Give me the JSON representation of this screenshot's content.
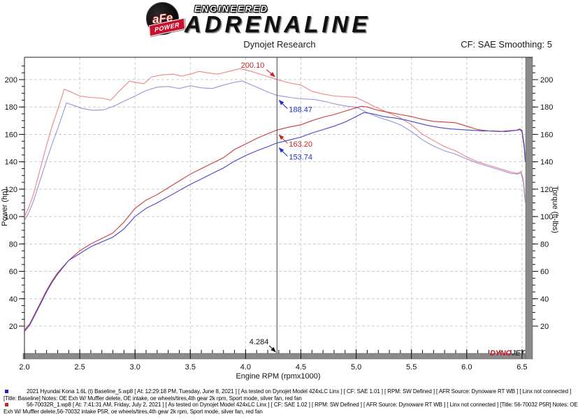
{
  "header": {
    "brand": {
      "circle_text": "aFe",
      "banner_text": "POWER",
      "line1": "ENGINEERED",
      "line2": "ADRENALINE"
    },
    "title": "Dynojet Research",
    "correction": "CF: SAE Smoothing: 5"
  },
  "chart_data": {
    "type": "line",
    "title": "Dynojet Research",
    "xlabel": "Engine RPM (rpmx1000)",
    "ylabel_left": "Power (hp)",
    "ylabel_right": "Torque (ft-lbs)",
    "xlim": [
      2.0,
      6.6
    ],
    "ylim": [
      0,
      213
    ],
    "x_major_ticks": [
      2.0,
      2.5,
      3.0,
      3.5,
      4.0,
      4.5,
      5.0,
      5.5,
      6.0,
      6.5
    ],
    "x_minor_step": 0.1,
    "y_major_ticks": [
      20,
      40,
      60,
      80,
      100,
      120,
      140,
      160,
      180,
      200
    ],
    "y_minor_step": 5,
    "grid": "dashed",
    "cursor": {
      "rpm": 4.284,
      "label": "4.284",
      "readouts": [
        {
          "text": "200.10",
          "color": "#cc2222",
          "placement": "above-left"
        },
        {
          "text": "188.47",
          "color": "#2233cc",
          "placement": "below-right"
        },
        {
          "text": "163.20",
          "color": "#cc2222",
          "placement": "below-right"
        },
        {
          "text": "153.74",
          "color": "#2233cc",
          "placement": "below-right"
        }
      ]
    },
    "series": [
      {
        "name": "Torque - 56-70032 P5R",
        "axis": "right",
        "color": "#ec8585",
        "points": [
          [
            2.0,
            100
          ],
          [
            2.04,
            107
          ],
          [
            2.08,
            116
          ],
          [
            2.12,
            128
          ],
          [
            2.16,
            140
          ],
          [
            2.2,
            152
          ],
          [
            2.25,
            166
          ],
          [
            2.3,
            178
          ],
          [
            2.36,
            193
          ],
          [
            2.42,
            191
          ],
          [
            2.5,
            188
          ],
          [
            2.6,
            187
          ],
          [
            2.7,
            186.5
          ],
          [
            2.78,
            185
          ],
          [
            2.85,
            191
          ],
          [
            2.95,
            199
          ],
          [
            3.0,
            198
          ],
          [
            3.08,
            197
          ],
          [
            3.15,
            202
          ],
          [
            3.25,
            203.5
          ],
          [
            3.35,
            204
          ],
          [
            3.42,
            202.5
          ],
          [
            3.5,
            204
          ],
          [
            3.58,
            206
          ],
          [
            3.65,
            205
          ],
          [
            3.75,
            204
          ],
          [
            3.85,
            206
          ],
          [
            3.95,
            208
          ],
          [
            4.05,
            206
          ],
          [
            4.15,
            203.5
          ],
          [
            4.284,
            200.1
          ],
          [
            4.4,
            197.5
          ],
          [
            4.5,
            196
          ],
          [
            4.6,
            191.5
          ],
          [
            4.7,
            189.5
          ],
          [
            4.8,
            188
          ],
          [
            4.9,
            187.5
          ],
          [
            5.0,
            187
          ],
          [
            5.1,
            183
          ],
          [
            5.2,
            179
          ],
          [
            5.3,
            175.5
          ],
          [
            5.4,
            172
          ],
          [
            5.5,
            167
          ],
          [
            5.6,
            160
          ],
          [
            5.7,
            155.5
          ],
          [
            5.8,
            151
          ],
          [
            5.9,
            148
          ],
          [
            6.0,
            143.5
          ],
          [
            6.1,
            140
          ],
          [
            6.2,
            137.5
          ],
          [
            6.3,
            135
          ],
          [
            6.4,
            132.5
          ],
          [
            6.46,
            131.5
          ],
          [
            6.49,
            133
          ],
          [
            6.51,
            128
          ],
          [
            6.53,
            112
          ]
        ]
      },
      {
        "name": "Torque - Baseline",
        "axis": "right",
        "color": "#9595dd",
        "points": [
          [
            2.0,
            97
          ],
          [
            2.04,
            103
          ],
          [
            2.08,
            111
          ],
          [
            2.12,
            121
          ],
          [
            2.16,
            131
          ],
          [
            2.2,
            141
          ],
          [
            2.25,
            153
          ],
          [
            2.3,
            164
          ],
          [
            2.38,
            183
          ],
          [
            2.45,
            181
          ],
          [
            2.52,
            179
          ],
          [
            2.62,
            177.5
          ],
          [
            2.72,
            178
          ],
          [
            2.82,
            181
          ],
          [
            2.92,
            185
          ],
          [
            3.0,
            188
          ],
          [
            3.1,
            192
          ],
          [
            3.2,
            194.5
          ],
          [
            3.3,
            195
          ],
          [
            3.4,
            193.5
          ],
          [
            3.5,
            195.5
          ],
          [
            3.6,
            194
          ],
          [
            3.7,
            193.5
          ],
          [
            3.8,
            196
          ],
          [
            3.9,
            198
          ],
          [
            3.97,
            199
          ],
          [
            4.1,
            194.5
          ],
          [
            4.2,
            191
          ],
          [
            4.284,
            188.5
          ],
          [
            4.4,
            187
          ],
          [
            4.5,
            186
          ],
          [
            4.62,
            185.5
          ],
          [
            4.72,
            184
          ],
          [
            4.82,
            182
          ],
          [
            4.92,
            180.5
          ],
          [
            5.0,
            180
          ],
          [
            5.1,
            176
          ],
          [
            5.2,
            172.5
          ],
          [
            5.3,
            170
          ],
          [
            5.4,
            167
          ],
          [
            5.5,
            162
          ],
          [
            5.6,
            156
          ],
          [
            5.7,
            151.5
          ],
          [
            5.8,
            148
          ],
          [
            5.9,
            145.5
          ],
          [
            6.0,
            142
          ],
          [
            6.1,
            139
          ],
          [
            6.2,
            136.5
          ],
          [
            6.3,
            134
          ],
          [
            6.4,
            131.5
          ],
          [
            6.46,
            131
          ],
          [
            6.49,
            132
          ],
          [
            6.51,
            126
          ],
          [
            6.53,
            110
          ]
        ]
      },
      {
        "name": "Power - 56-70032 P5R",
        "axis": "left",
        "color": "#cf3a3a",
        "points": [
          [
            2.0,
            17
          ],
          [
            2.05,
            22
          ],
          [
            2.1,
            30
          ],
          [
            2.15,
            38
          ],
          [
            2.2,
            46
          ],
          [
            2.25,
            53
          ],
          [
            2.3,
            59
          ],
          [
            2.4,
            68
          ],
          [
            2.5,
            75
          ],
          [
            2.6,
            80
          ],
          [
            2.7,
            84
          ],
          [
            2.8,
            88
          ],
          [
            2.9,
            96
          ],
          [
            3.0,
            106
          ],
          [
            3.1,
            112
          ],
          [
            3.2,
            116
          ],
          [
            3.3,
            121
          ],
          [
            3.4,
            126
          ],
          [
            3.5,
            131
          ],
          [
            3.6,
            135
          ],
          [
            3.7,
            139
          ],
          [
            3.8,
            143
          ],
          [
            3.9,
            149
          ],
          [
            4.0,
            153
          ],
          [
            4.1,
            157
          ],
          [
            4.2,
            160.5
          ],
          [
            4.284,
            163.2
          ],
          [
            4.4,
            165.5
          ],
          [
            4.5,
            167
          ],
          [
            4.6,
            170
          ],
          [
            4.7,
            172.5
          ],
          [
            4.8,
            174.5
          ],
          [
            4.9,
            177
          ],
          [
            5.0,
            179.5
          ],
          [
            5.05,
            180.5
          ],
          [
            5.1,
            180
          ],
          [
            5.2,
            177.5
          ],
          [
            5.3,
            176
          ],
          [
            5.4,
            174.5
          ],
          [
            5.5,
            173
          ],
          [
            5.6,
            171
          ],
          [
            5.7,
            169.5
          ],
          [
            5.8,
            169
          ],
          [
            5.9,
            168.5
          ],
          [
            6.0,
            166
          ],
          [
            6.1,
            163.5
          ],
          [
            6.2,
            162.5
          ],
          [
            6.3,
            162
          ],
          [
            6.35,
            162.5
          ],
          [
            6.45,
            163
          ],
          [
            6.48,
            164
          ],
          [
            6.5,
            163
          ],
          [
            6.52,
            152
          ],
          [
            6.53,
            141
          ]
        ]
      },
      {
        "name": "Power - Baseline",
        "axis": "left",
        "color": "#4444c8",
        "points": [
          [
            2.0,
            16
          ],
          [
            2.05,
            21
          ],
          [
            2.1,
            29
          ],
          [
            2.15,
            37
          ],
          [
            2.2,
            45
          ],
          [
            2.25,
            52
          ],
          [
            2.3,
            58
          ],
          [
            2.4,
            68
          ],
          [
            2.5,
            73
          ],
          [
            2.6,
            78
          ],
          [
            2.7,
            81.5
          ],
          [
            2.8,
            85
          ],
          [
            2.9,
            91
          ],
          [
            3.0,
            100
          ],
          [
            3.1,
            106
          ],
          [
            3.2,
            110
          ],
          [
            3.3,
            114.5
          ],
          [
            3.4,
            119
          ],
          [
            3.5,
            123.5
          ],
          [
            3.6,
            127.5
          ],
          [
            3.7,
            131.5
          ],
          [
            3.8,
            135.5
          ],
          [
            3.9,
            140.5
          ],
          [
            4.0,
            144.5
          ],
          [
            4.1,
            148
          ],
          [
            4.2,
            151
          ],
          [
            4.284,
            153.7
          ],
          [
            4.4,
            156
          ],
          [
            4.5,
            158
          ],
          [
            4.6,
            161
          ],
          [
            4.7,
            163.5
          ],
          [
            4.8,
            166
          ],
          [
            4.9,
            169
          ],
          [
            5.0,
            173
          ],
          [
            5.07,
            176
          ],
          [
            5.15,
            175
          ],
          [
            5.25,
            173
          ],
          [
            5.35,
            172
          ],
          [
            5.45,
            170.5
          ],
          [
            5.55,
            168.5
          ],
          [
            5.65,
            166.5
          ],
          [
            5.75,
            165
          ],
          [
            5.85,
            164
          ],
          [
            5.95,
            163.5
          ],
          [
            6.05,
            163
          ],
          [
            6.15,
            162.5
          ],
          [
            6.25,
            162.5
          ],
          [
            6.35,
            162
          ],
          [
            6.45,
            163
          ],
          [
            6.48,
            163.5
          ],
          [
            6.5,
            162
          ],
          [
            6.52,
            150
          ],
          [
            6.53,
            140
          ]
        ]
      }
    ],
    "watermark": {
      "part1": "DYNO",
      "part2": "JET",
      "color1": "#cc1122",
      "color2": "#3a3a3a"
    }
  },
  "legend": {
    "entries": [
      {
        "marker_color": "#2222cc",
        "line1": "2021 Hyundai Kona 1.6L (t) Baseline_5.wp8 [ At: 12:29:18 PM, Tuesday, June 8, 2021 ] [ As tested on Dynojet Model 424xLC Linx ] [ CF: SAE 1.01 ] [ RPM: SW Defined ] [ AFR Source: Dynoware RT WB ] [ Linx not connected ]",
        "line2": "[Title: Baseline]  Notes: OE Exh W/ Muffler delete, OE intake, oe wheels/tires,4th gear 2k rpm, Sport mode, silver fan, red fan"
      },
      {
        "marker_color": "#cc2222",
        "line1": "56-70032R_1.wp8 [ At: 7:41:31 AM, Friday, July 2, 2021 ] [ As tested on Dynojet Model 424xLC Linx ] [ CF: SAE 1.02 ] [ RPM: SW Defined ] [ AFR Source: Dynoware RT WB ] [ Linx not connected ] [Title: 56-70032 P5R]  Notes: OE",
        "line2": "Exh W/ Muffler delete,56-70032  intake P5R, oe wheels/tires,4th gear 2k rpm, Sport mode, silver fan, red fan"
      }
    ]
  }
}
